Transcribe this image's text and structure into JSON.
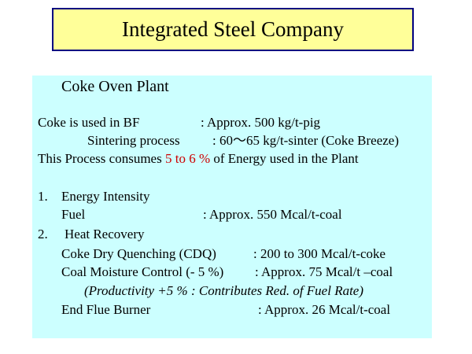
{
  "colors": {
    "title_bg": "#ffff99",
    "title_border": "#000080",
    "content_bg": "#ccffff",
    "highlight": "#cc0000"
  },
  "title": "Integrated  Steel Company",
  "section_heading": "Coke Oven Plant",
  "coke_bf": {
    "label": "Coke is used in BF",
    "value": ": Approx. 500 kg/t-pig"
  },
  "sintering": {
    "label": "Sintering process",
    "value": ": 60～65 kg/t-sinter (Coke Breeze)"
  },
  "energy_share": {
    "before": "This Process consumes ",
    "highlight": "5 to 6 %",
    "after": " of Energy used in the Plant"
  },
  "item1": {
    "number": "1.",
    "title": "Energy Intensity",
    "fuel_label": "Fuel",
    "fuel_value": ": Approx. 550 Mcal/t-coal"
  },
  "item2": {
    "number": "2.",
    "title": "Heat Recovery",
    "cdq_label": "Coke Dry Quenching (CDQ)",
    "cdq_value": ": 200 to 300 Mcal/t-coke",
    "cmc_label": "Coal Moisture Control (- 5 %)",
    "cmc_value": ": Approx. 75 Mcal/t –coal",
    "productivity_note": "(Productivity +5 % : Contributes Red. of Fuel Rate)",
    "efb_label": "End Flue Burner",
    "efb_value": ": Approx. 26 Mcal/t-coal"
  }
}
